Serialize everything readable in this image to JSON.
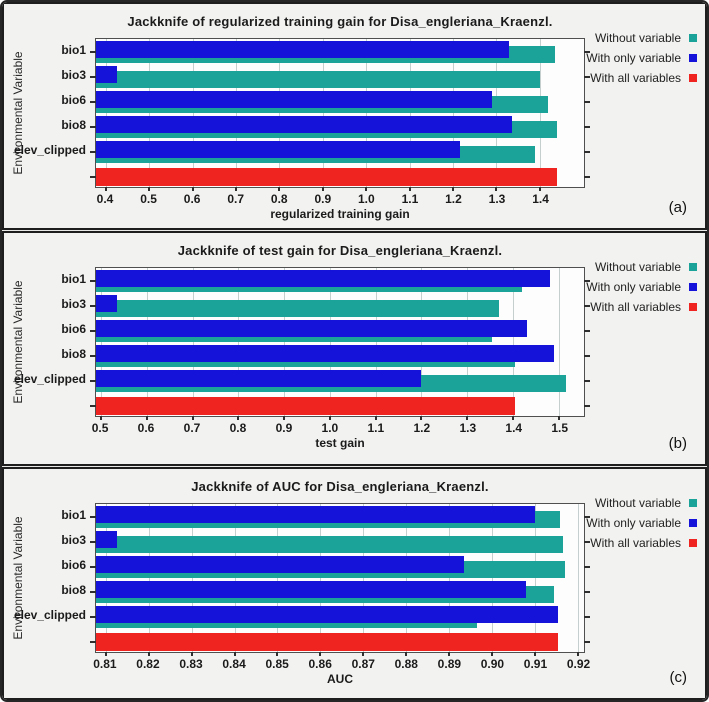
{
  "palette": {
    "without": "#1BA39A",
    "only": "#1513DA",
    "all": "#EF2420",
    "grid": "#c4cfce",
    "plot_bg": "#fdfdfd",
    "plot_border": "#4f4f4f",
    "panel_bg": "#f2f2f0",
    "text": "#1b1b1b"
  },
  "legend": {
    "items": [
      {
        "label": "Without variable",
        "key": "without"
      },
      {
        "label": "With only variable",
        "key": "only"
      },
      {
        "label": "With all variables",
        "key": "all"
      }
    ]
  },
  "chart_data": [
    {
      "type": "bar",
      "panel_label": "(a)",
      "title": "Jackknife of regularized training gain for Disa_engleriana_Kraenzl.",
      "xlabel": "regularized training gain",
      "ylabel": "Environmental Variable",
      "categories": [
        "bio1",
        "bio3",
        "bio6",
        "bio8",
        "elev_clipped",
        ""
      ],
      "xmin": 0.377,
      "xmax": 1.502,
      "ticks": [
        "0.4",
        "0.5",
        "0.6",
        "0.7",
        "0.8",
        "0.9",
        "1.0",
        "1.1",
        "1.2",
        "1.3",
        "1.4"
      ],
      "grid": true,
      "legend_position": "right-top",
      "series": [
        {
          "name": "Without variable",
          "key": "without",
          "values": [
            1.435,
            1.4,
            1.42,
            1.44,
            1.39,
            null
          ]
        },
        {
          "name": "With only variable",
          "key": "only",
          "values": [
            1.33,
            0.425,
            1.29,
            1.335,
            1.215,
            null
          ]
        },
        {
          "name": "With all variables",
          "key": "all",
          "values": [
            null,
            null,
            null,
            null,
            null,
            1.44
          ]
        }
      ]
    },
    {
      "type": "bar",
      "panel_label": "(b)",
      "title": "Jackknife of test gain for Disa_engleriana_Kraenzl.",
      "xlabel": "test gain",
      "ylabel": "Environmental Variable",
      "categories": [
        "bio1",
        "bio3",
        "bio6",
        "bio8",
        "elev_clipped",
        ""
      ],
      "xmin": 0.489,
      "xmax": 1.555,
      "ticks": [
        "0.5",
        "0.6",
        "0.7",
        "0.8",
        "0.9",
        "1.0",
        "1.1",
        "1.2",
        "1.3",
        "1.4",
        "1.5"
      ],
      "grid": true,
      "legend_position": "right-top",
      "series": [
        {
          "name": "Without variable",
          "key": "without",
          "values": [
            1.42,
            1.37,
            1.355,
            1.405,
            1.515,
            null
          ]
        },
        {
          "name": "With only variable",
          "key": "only",
          "values": [
            1.48,
            0.535,
            1.43,
            1.49,
            1.2,
            null
          ]
        },
        {
          "name": "With all variables",
          "key": "all",
          "values": [
            null,
            null,
            null,
            null,
            null,
            1.405
          ]
        }
      ]
    },
    {
      "type": "bar",
      "panel_label": "(c)",
      "title": "Jackknife of AUC for Disa_engleriana_Kraenzl.",
      "xlabel": "AUC",
      "ylabel": "Environmental Variable",
      "categories": [
        "bio1",
        "bio3",
        "bio6",
        "bio8",
        "elev_clipped",
        ""
      ],
      "xmin": 0.8077,
      "xmax": 0.9215,
      "ticks": [
        "0.81",
        "0.82",
        "0.83",
        "0.84",
        "0.85",
        "0.86",
        "0.87",
        "0.88",
        "0.89",
        "0.90",
        "0.91",
        "0.92"
      ],
      "grid": true,
      "legend_position": "right-top",
      "series": [
        {
          "name": "Without variable",
          "key": "without",
          "values": [
            0.916,
            0.9165,
            0.917,
            0.9145,
            0.8965,
            null
          ]
        },
        {
          "name": "With only variable",
          "key": "only",
          "values": [
            0.91,
            0.8125,
            0.8935,
            0.908,
            0.9155,
            null
          ]
        },
        {
          "name": "With all variables",
          "key": "all",
          "values": [
            null,
            null,
            null,
            null,
            null,
            0.9155
          ]
        }
      ]
    }
  ]
}
